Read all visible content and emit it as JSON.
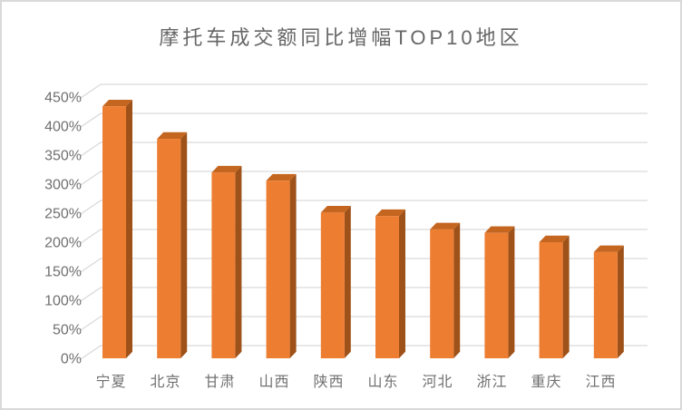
{
  "chart_data": {
    "type": "bar",
    "style": "3d-column",
    "title": "摩托车成交额同比增幅TOP10地区",
    "categories": [
      "宁夏",
      "北京",
      "甘肃",
      "山西",
      "陕西",
      "山东",
      "河北",
      "浙江",
      "重庆",
      "江西"
    ],
    "values": [
      434,
      378,
      320,
      306,
      251,
      245,
      222,
      216,
      200,
      183
    ],
    "value_unit": "%",
    "xlabel": "",
    "ylabel": "",
    "ylim": [
      0,
      450
    ],
    "ytick_step": 50,
    "ytick_labels": [
      "0%",
      "50%",
      "100%",
      "150%",
      "200%",
      "250%",
      "300%",
      "350%",
      "400%",
      "450%"
    ],
    "grid": true,
    "legend": false,
    "colors": {
      "bar_front": "#ED7D31",
      "bar_top": "#C4661F",
      "bar_side": "#9E5118",
      "gridline": "#D9D9D9",
      "axis_text": "#707070",
      "title_text": "#666666",
      "background": "#FFFFFF",
      "border": "#D9D9D9"
    }
  }
}
